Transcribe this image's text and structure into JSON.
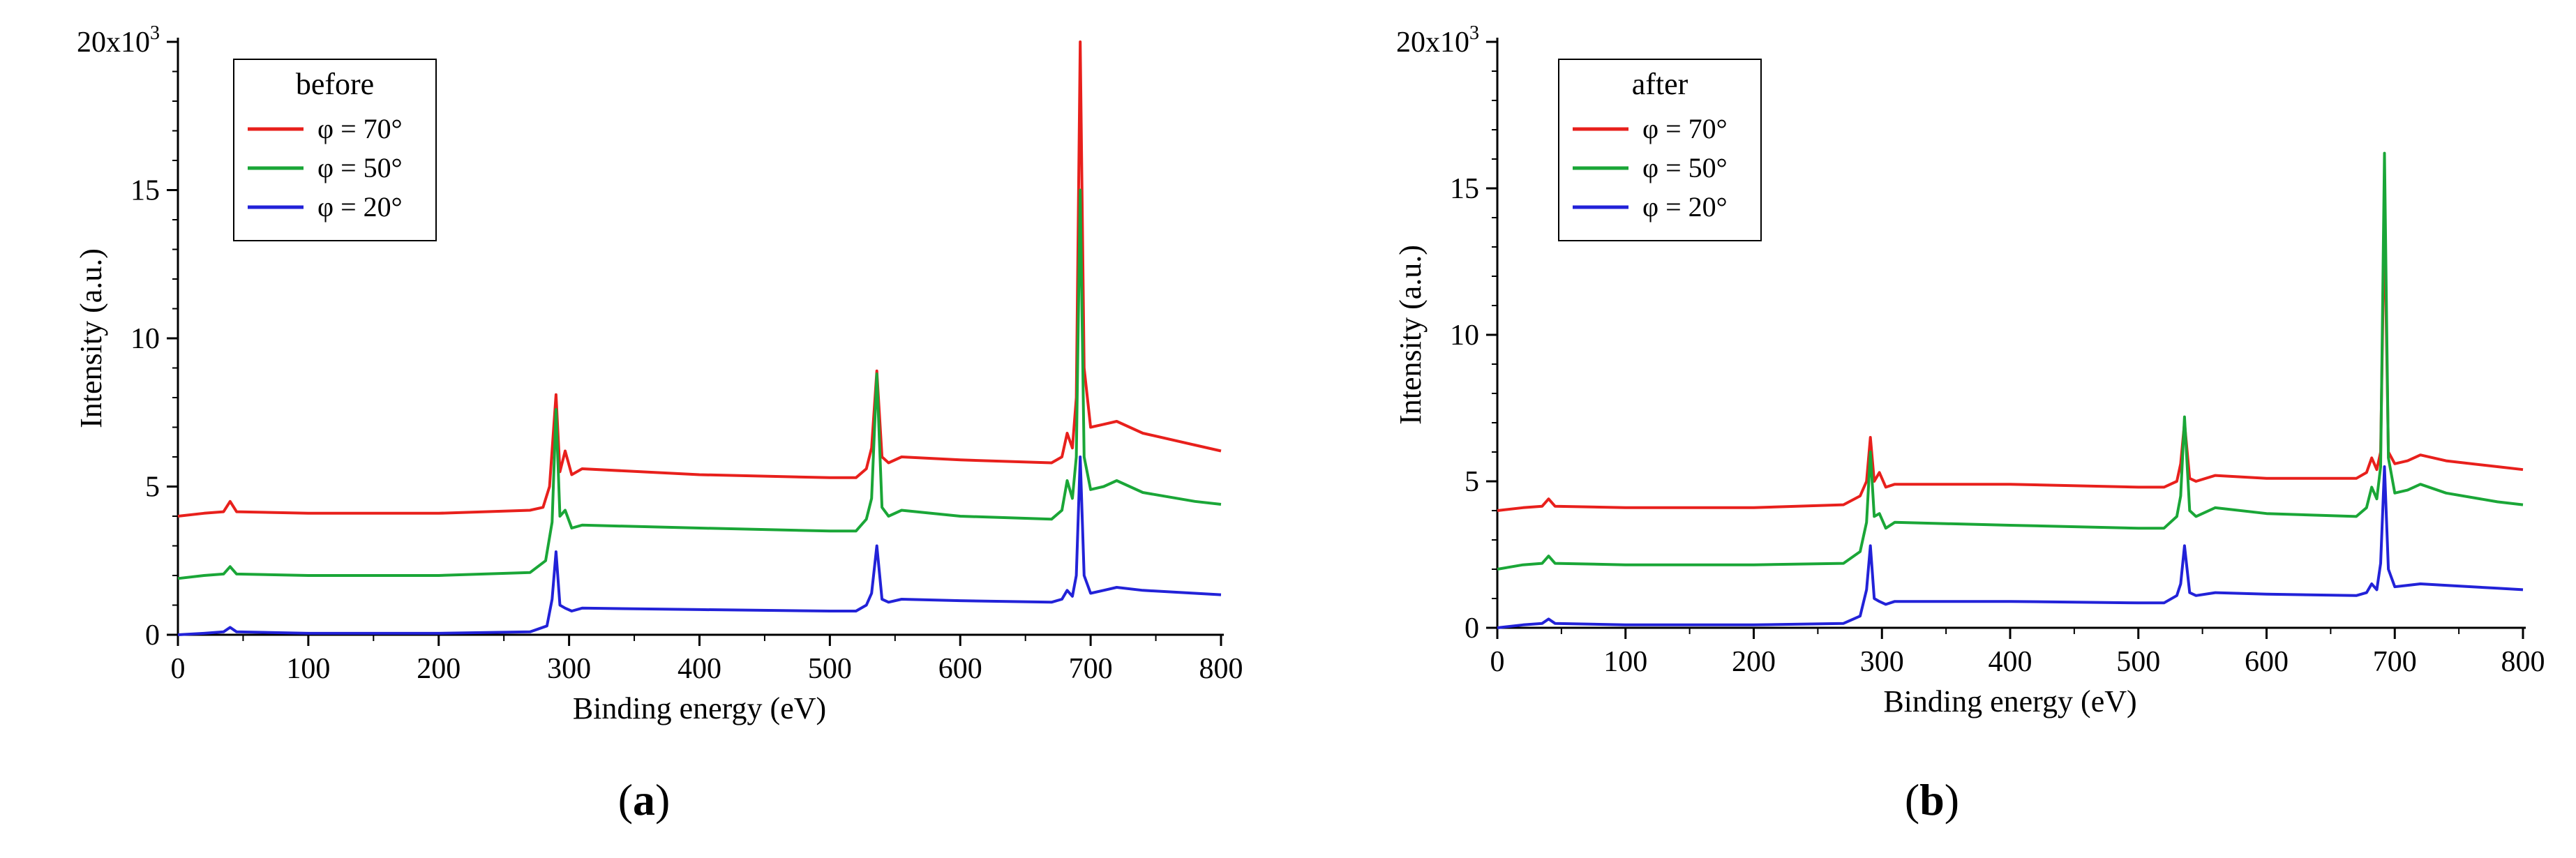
{
  "chart_data": [
    {
      "type": "line",
      "panel_label": "a",
      "legend_title": "before",
      "xlabel": "Binding energy (eV)",
      "ylabel": "Intensity (a.u.)",
      "xlim": [
        0,
        800
      ],
      "ylim": [
        0,
        20
      ],
      "x_ticks": [
        "0",
        "100",
        "200",
        "300",
        "400",
        "500",
        "600",
        "700",
        "800"
      ],
      "y_ticks": [
        "0",
        "5",
        "10",
        "15",
        "20x10³"
      ],
      "y_top_label_main": "20x10",
      "y_top_label_exp": "3",
      "grid": false,
      "legend_position": "top-left",
      "series": [
        {
          "name": "φ = 70°",
          "color": "#e8201c",
          "points": [
            [
              0,
              4.0
            ],
            [
              20,
              4.1
            ],
            [
              35,
              4.15
            ],
            [
              40,
              4.5
            ],
            [
              45,
              4.15
            ],
            [
              100,
              4.1
            ],
            [
              200,
              4.1
            ],
            [
              270,
              4.2
            ],
            [
              280,
              4.3
            ],
            [
              285,
              5.0
            ],
            [
              290,
              8.1
            ],
            [
              293,
              5.5
            ],
            [
              297,
              6.2
            ],
            [
              302,
              5.4
            ],
            [
              310,
              5.6
            ],
            [
              400,
              5.4
            ],
            [
              500,
              5.3
            ],
            [
              520,
              5.3
            ],
            [
              528,
              5.6
            ],
            [
              532,
              6.3
            ],
            [
              536,
              8.9
            ],
            [
              540,
              6.0
            ],
            [
              545,
              5.8
            ],
            [
              555,
              6.0
            ],
            [
              600,
              5.9
            ],
            [
              670,
              5.8
            ],
            [
              678,
              6.0
            ],
            [
              682,
              6.8
            ],
            [
              686,
              6.3
            ],
            [
              689,
              8.0
            ],
            [
              692,
              20.0
            ],
            [
              695,
              9.0
            ],
            [
              700,
              7.0
            ],
            [
              710,
              7.1
            ],
            [
              720,
              7.2
            ],
            [
              740,
              6.8
            ],
            [
              780,
              6.4
            ],
            [
              800,
              6.2
            ]
          ]
        },
        {
          "name": "φ = 50°",
          "color": "#1aa637",
          "points": [
            [
              0,
              1.9
            ],
            [
              20,
              2.0
            ],
            [
              35,
              2.05
            ],
            [
              40,
              2.3
            ],
            [
              45,
              2.05
            ],
            [
              100,
              2.0
            ],
            [
              200,
              2.0
            ],
            [
              270,
              2.1
            ],
            [
              282,
              2.5
            ],
            [
              287,
              3.8
            ],
            [
              290,
              7.6
            ],
            [
              293,
              4.0
            ],
            [
              297,
              4.2
            ],
            [
              302,
              3.6
            ],
            [
              310,
              3.7
            ],
            [
              400,
              3.6
            ],
            [
              500,
              3.5
            ],
            [
              520,
              3.5
            ],
            [
              528,
              3.9
            ],
            [
              532,
              4.6
            ],
            [
              536,
              8.8
            ],
            [
              540,
              4.3
            ],
            [
              545,
              4.0
            ],
            [
              555,
              4.2
            ],
            [
              600,
              4.0
            ],
            [
              670,
              3.9
            ],
            [
              678,
              4.2
            ],
            [
              682,
              5.2
            ],
            [
              686,
              4.6
            ],
            [
              689,
              6.0
            ],
            [
              692,
              15.0
            ],
            [
              695,
              6.0
            ],
            [
              700,
              4.9
            ],
            [
              710,
              5.0
            ],
            [
              720,
              5.2
            ],
            [
              740,
              4.8
            ],
            [
              780,
              4.5
            ],
            [
              800,
              4.4
            ]
          ]
        },
        {
          "name": "φ = 20°",
          "color": "#2222d8",
          "points": [
            [
              0,
              0.0
            ],
            [
              20,
              0.05
            ],
            [
              35,
              0.1
            ],
            [
              40,
              0.25
            ],
            [
              45,
              0.1
            ],
            [
              100,
              0.05
            ],
            [
              200,
              0.05
            ],
            [
              270,
              0.1
            ],
            [
              283,
              0.3
            ],
            [
              287,
              1.2
            ],
            [
              290,
              2.8
            ],
            [
              293,
              1.0
            ],
            [
              297,
              0.9
            ],
            [
              302,
              0.8
            ],
            [
              310,
              0.9
            ],
            [
              400,
              0.85
            ],
            [
              500,
              0.8
            ],
            [
              520,
              0.8
            ],
            [
              528,
              1.0
            ],
            [
              532,
              1.4
            ],
            [
              536,
              3.0
            ],
            [
              540,
              1.2
            ],
            [
              545,
              1.1
            ],
            [
              555,
              1.2
            ],
            [
              600,
              1.15
            ],
            [
              670,
              1.1
            ],
            [
              678,
              1.2
            ],
            [
              682,
              1.5
            ],
            [
              686,
              1.3
            ],
            [
              689,
              2.0
            ],
            [
              692,
              6.0
            ],
            [
              695,
              2.0
            ],
            [
              700,
              1.4
            ],
            [
              710,
              1.5
            ],
            [
              720,
              1.6
            ],
            [
              740,
              1.5
            ],
            [
              780,
              1.4
            ],
            [
              800,
              1.35
            ]
          ]
        }
      ]
    },
    {
      "type": "line",
      "panel_label": "b",
      "legend_title": "after",
      "xlabel": "Binding energy (eV)",
      "ylabel": "Intensity (a.u.)",
      "xlim": [
        0,
        800
      ],
      "ylim": [
        0,
        20
      ],
      "x_ticks": [
        "0",
        "100",
        "200",
        "300",
        "400",
        "500",
        "600",
        "700",
        "800"
      ],
      "y_ticks": [
        "0",
        "5",
        "10",
        "15",
        "20x10³"
      ],
      "y_top_label_main": "20x10",
      "y_top_label_exp": "3",
      "grid": false,
      "legend_position": "top-left",
      "series": [
        {
          "name": "φ = 70°",
          "color": "#e8201c",
          "points": [
            [
              0,
              4.0
            ],
            [
              20,
              4.1
            ],
            [
              35,
              4.15
            ],
            [
              40,
              4.4
            ],
            [
              45,
              4.15
            ],
            [
              100,
              4.1
            ],
            [
              200,
              4.1
            ],
            [
              270,
              4.2
            ],
            [
              283,
              4.5
            ],
            [
              288,
              5.0
            ],
            [
              291,
              6.5
            ],
            [
              294,
              5.0
            ],
            [
              298,
              5.3
            ],
            [
              303,
              4.8
            ],
            [
              310,
              4.9
            ],
            [
              400,
              4.9
            ],
            [
              500,
              4.8
            ],
            [
              520,
              4.8
            ],
            [
              530,
              5.0
            ],
            [
              533,
              5.6
            ],
            [
              536,
              7.0
            ],
            [
              540,
              5.1
            ],
            [
              545,
              5.0
            ],
            [
              560,
              5.2
            ],
            [
              600,
              5.1
            ],
            [
              670,
              5.1
            ],
            [
              678,
              5.3
            ],
            [
              682,
              5.8
            ],
            [
              686,
              5.4
            ],
            [
              689,
              6.0
            ],
            [
              692,
              14.2
            ],
            [
              695,
              6.0
            ],
            [
              700,
              5.6
            ],
            [
              710,
              5.7
            ],
            [
              720,
              5.9
            ],
            [
              740,
              5.7
            ],
            [
              780,
              5.5
            ],
            [
              800,
              5.4
            ]
          ]
        },
        {
          "name": "φ = 50°",
          "color": "#1aa637",
          "points": [
            [
              0,
              2.0
            ],
            [
              20,
              2.15
            ],
            [
              35,
              2.2
            ],
            [
              40,
              2.45
            ],
            [
              45,
              2.2
            ],
            [
              100,
              2.15
            ],
            [
              200,
              2.15
            ],
            [
              270,
              2.2
            ],
            [
              283,
              2.6
            ],
            [
              288,
              3.6
            ],
            [
              291,
              6.0
            ],
            [
              294,
              3.8
            ],
            [
              298,
              3.9
            ],
            [
              303,
              3.4
            ],
            [
              310,
              3.6
            ],
            [
              400,
              3.5
            ],
            [
              500,
              3.4
            ],
            [
              520,
              3.4
            ],
            [
              530,
              3.8
            ],
            [
              533,
              4.5
            ],
            [
              536,
              7.2
            ],
            [
              540,
              4.0
            ],
            [
              545,
              3.8
            ],
            [
              560,
              4.1
            ],
            [
              600,
              3.9
            ],
            [
              670,
              3.8
            ],
            [
              678,
              4.1
            ],
            [
              682,
              4.8
            ],
            [
              686,
              4.4
            ],
            [
              689,
              5.5
            ],
            [
              692,
              16.2
            ],
            [
              695,
              5.8
            ],
            [
              700,
              4.6
            ],
            [
              710,
              4.7
            ],
            [
              720,
              4.9
            ],
            [
              740,
              4.6
            ],
            [
              780,
              4.3
            ],
            [
              800,
              4.2
            ]
          ]
        },
        {
          "name": "φ = 20°",
          "color": "#2222d8",
          "points": [
            [
              0,
              0.0
            ],
            [
              20,
              0.1
            ],
            [
              35,
              0.15
            ],
            [
              40,
              0.3
            ],
            [
              45,
              0.15
            ],
            [
              100,
              0.1
            ],
            [
              200,
              0.1
            ],
            [
              270,
              0.15
            ],
            [
              283,
              0.4
            ],
            [
              288,
              1.3
            ],
            [
              291,
              2.8
            ],
            [
              294,
              1.0
            ],
            [
              298,
              0.9
            ],
            [
              303,
              0.8
            ],
            [
              310,
              0.9
            ],
            [
              400,
              0.9
            ],
            [
              500,
              0.85
            ],
            [
              520,
              0.85
            ],
            [
              530,
              1.1
            ],
            [
              533,
              1.5
            ],
            [
              536,
              2.8
            ],
            [
              540,
              1.2
            ],
            [
              545,
              1.1
            ],
            [
              560,
              1.2
            ],
            [
              600,
              1.15
            ],
            [
              670,
              1.1
            ],
            [
              678,
              1.2
            ],
            [
              682,
              1.5
            ],
            [
              686,
              1.3
            ],
            [
              689,
              2.2
            ],
            [
              692,
              5.5
            ],
            [
              695,
              2.0
            ],
            [
              700,
              1.4
            ],
            [
              710,
              1.45
            ],
            [
              720,
              1.5
            ],
            [
              740,
              1.45
            ],
            [
              780,
              1.35
            ],
            [
              800,
              1.3
            ]
          ]
        }
      ]
    }
  ]
}
